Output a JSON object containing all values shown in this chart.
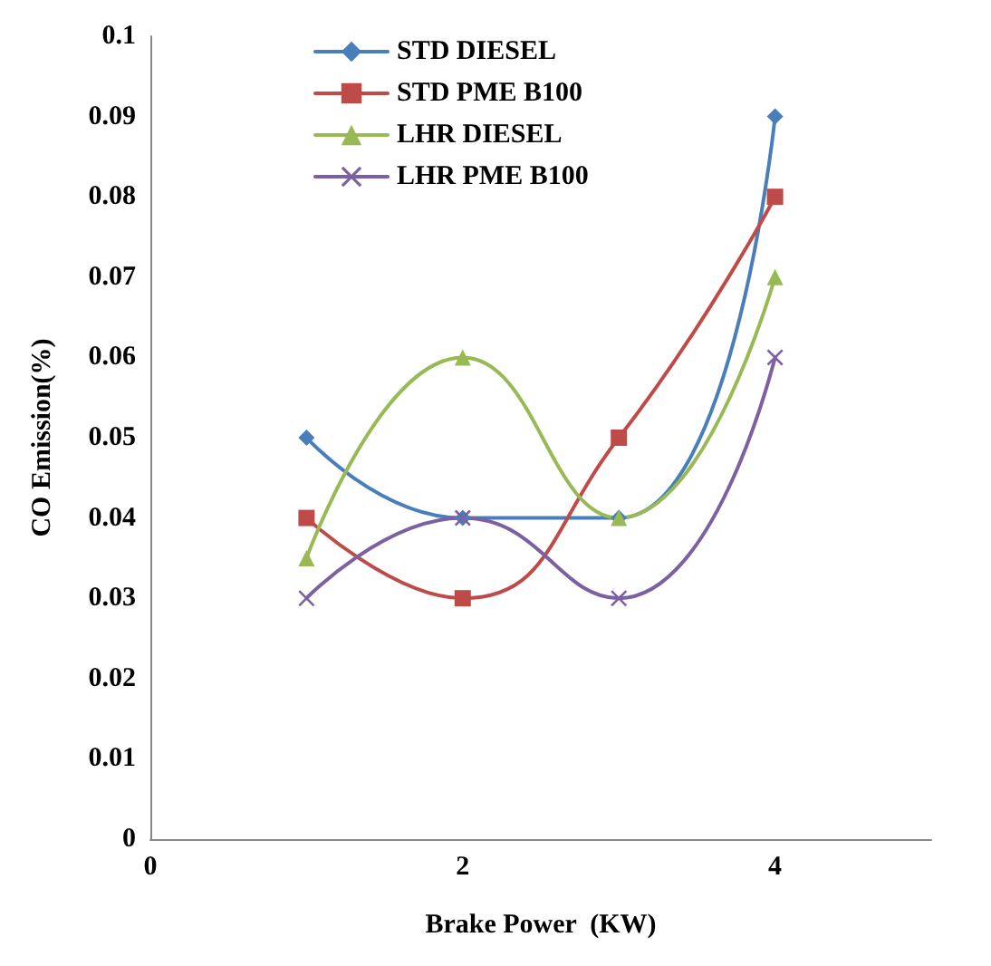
{
  "chart_data": {
    "type": "line",
    "xlabel": "Brake Power  (KW)",
    "ylabel": "CO Emission(%)",
    "x": [
      1,
      2,
      3,
      4
    ],
    "xlim": [
      0,
      5
    ],
    "xticks": [
      0,
      2,
      4
    ],
    "ylim": [
      0,
      0.1
    ],
    "yticks": [
      0,
      0.01,
      0.02,
      0.03,
      0.04,
      0.05,
      0.06,
      0.07,
      0.08,
      0.09,
      0.1
    ],
    "grid": false,
    "legend": "top left",
    "line_style": "solid",
    "series": [
      {
        "name": "STD DIESEL",
        "color": "#4a7ebb",
        "marker": "diamond",
        "values": [
          0.05,
          0.04,
          0.04,
          0.09
        ]
      },
      {
        "name": "STD PME B100",
        "color": "#be4b48",
        "marker": "square",
        "values": [
          0.04,
          0.03,
          0.05,
          0.08
        ]
      },
      {
        "name": "LHR DIESEL",
        "color": "#98b954",
        "marker": "triangle",
        "values": [
          0.035,
          0.06,
          0.04,
          0.07
        ]
      },
      {
        "name": "LHR PME B100",
        "color": "#7d60a0",
        "marker": "cross",
        "values": [
          0.03,
          0.04,
          0.03,
          0.06
        ]
      }
    ]
  }
}
